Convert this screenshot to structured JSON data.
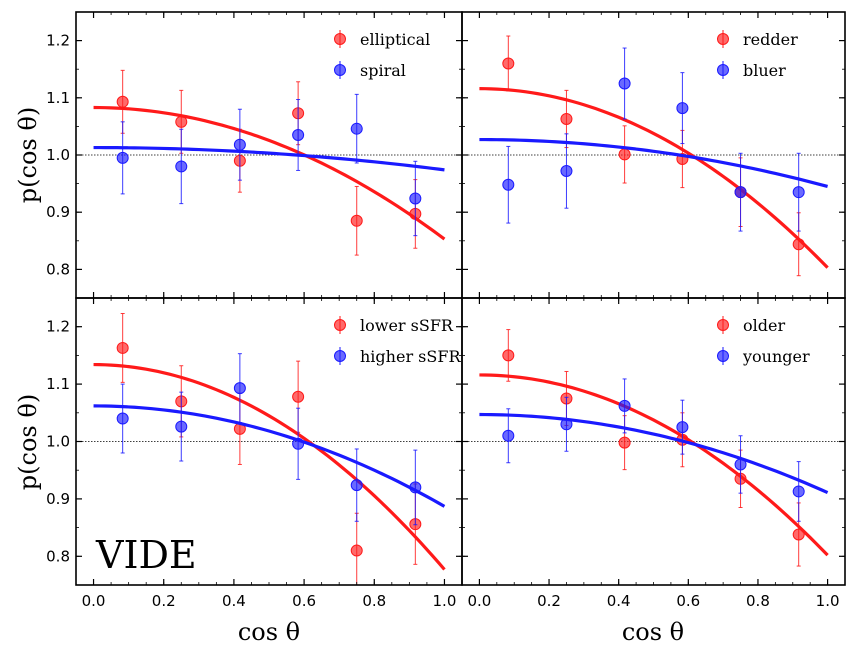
{
  "chart_data": {
    "type": "scatter",
    "xlabel": "cos θ",
    "ylabel": "p(cos θ)",
    "xlim": [
      -0.05,
      1.05
    ],
    "ylim": [
      0.75,
      1.25
    ],
    "xticks": [
      "0.0",
      "0.2",
      "0.4",
      "0.6",
      "0.8",
      "1.0"
    ],
    "yticks": [
      "0.8",
      "0.9",
      "1.0",
      "1.1",
      "1.2"
    ],
    "xtick_values": [
      0.0,
      0.2,
      0.4,
      0.6,
      0.8,
      1.0
    ],
    "ytick_values": [
      0.8,
      0.9,
      1.0,
      1.1,
      1.2
    ],
    "reference_line": 1.0,
    "x": [
      0.083,
      0.25,
      0.417,
      0.583,
      0.75,
      0.917
    ],
    "annotation": "VIDE",
    "panels": [
      {
        "position": "top-left",
        "series": [
          {
            "name": "elliptical",
            "color": "#ff1a1a",
            "values": [
              1.093,
              1.058,
              0.99,
              1.073,
              0.885,
              0.897
            ],
            "err": [
              0.055,
              0.055,
              0.055,
              0.055,
              0.06,
              0.06
            ],
            "fit": {
              "a": 1.083,
              "b": 0.23
            }
          },
          {
            "name": "spiral",
            "color": "#1a1aff",
            "values": [
              0.995,
              0.98,
              1.018,
              1.035,
              1.046,
              0.924
            ],
            "err": [
              0.063,
              0.065,
              0.062,
              0.062,
              0.06,
              0.065
            ],
            "fit": {
              "a": 1.013,
              "b": 0.039
            }
          }
        ]
      },
      {
        "position": "top-right",
        "series": [
          {
            "name": "redder",
            "color": "#ff1a1a",
            "values": [
              1.16,
              1.063,
              1.001,
              0.993,
              0.935,
              0.844
            ],
            "err": [
              0.048,
              0.05,
              0.05,
              0.05,
              0.06,
              0.055
            ],
            "fit": {
              "a": 1.116,
              "b": 0.313
            }
          },
          {
            "name": "bluer",
            "color": "#1a1aff",
            "values": [
              0.948,
              0.972,
              1.125,
              1.082,
              0.935,
              0.935
            ],
            "err": [
              0.067,
              0.065,
              0.062,
              0.062,
              0.068,
              0.068
            ],
            "fit": {
              "a": 1.027,
              "b": 0.082
            }
          }
        ]
      },
      {
        "position": "bottom-left",
        "series": [
          {
            "name": "lower sSFR",
            "color": "#ff1a1a",
            "values": [
              1.163,
              1.07,
              1.022,
              1.078,
              0.81,
              0.856
            ],
            "err": [
              0.06,
              0.062,
              0.062,
              0.062,
              0.065,
              0.07
            ],
            "fit": {
              "a": 1.134,
              "b": 0.357
            }
          },
          {
            "name": "higher sSFR",
            "color": "#1a1aff",
            "values": [
              1.04,
              1.026,
              1.093,
              0.996,
              0.924,
              0.92
            ],
            "err": [
              0.06,
              0.06,
              0.06,
              0.062,
              0.063,
              0.065
            ],
            "fit": {
              "a": 1.062,
              "b": 0.175
            }
          }
        ]
      },
      {
        "position": "bottom-right",
        "series": [
          {
            "name": "older",
            "color": "#ff1a1a",
            "values": [
              1.15,
              1.075,
              0.998,
              1.003,
              0.935,
              0.838
            ],
            "err": [
              0.045,
              0.047,
              0.047,
              0.047,
              0.05,
              0.055
            ],
            "fit": {
              "a": 1.116,
              "b": 0.314
            }
          },
          {
            "name": "younger",
            "color": "#1a1aff",
            "values": [
              1.01,
              1.03,
              1.062,
              1.025,
              0.96,
              0.913
            ],
            "err": [
              0.047,
              0.047,
              0.047,
              0.047,
              0.05,
              0.052
            ],
            "fit": {
              "a": 1.047,
              "b": 0.136
            }
          }
        ]
      }
    ]
  }
}
